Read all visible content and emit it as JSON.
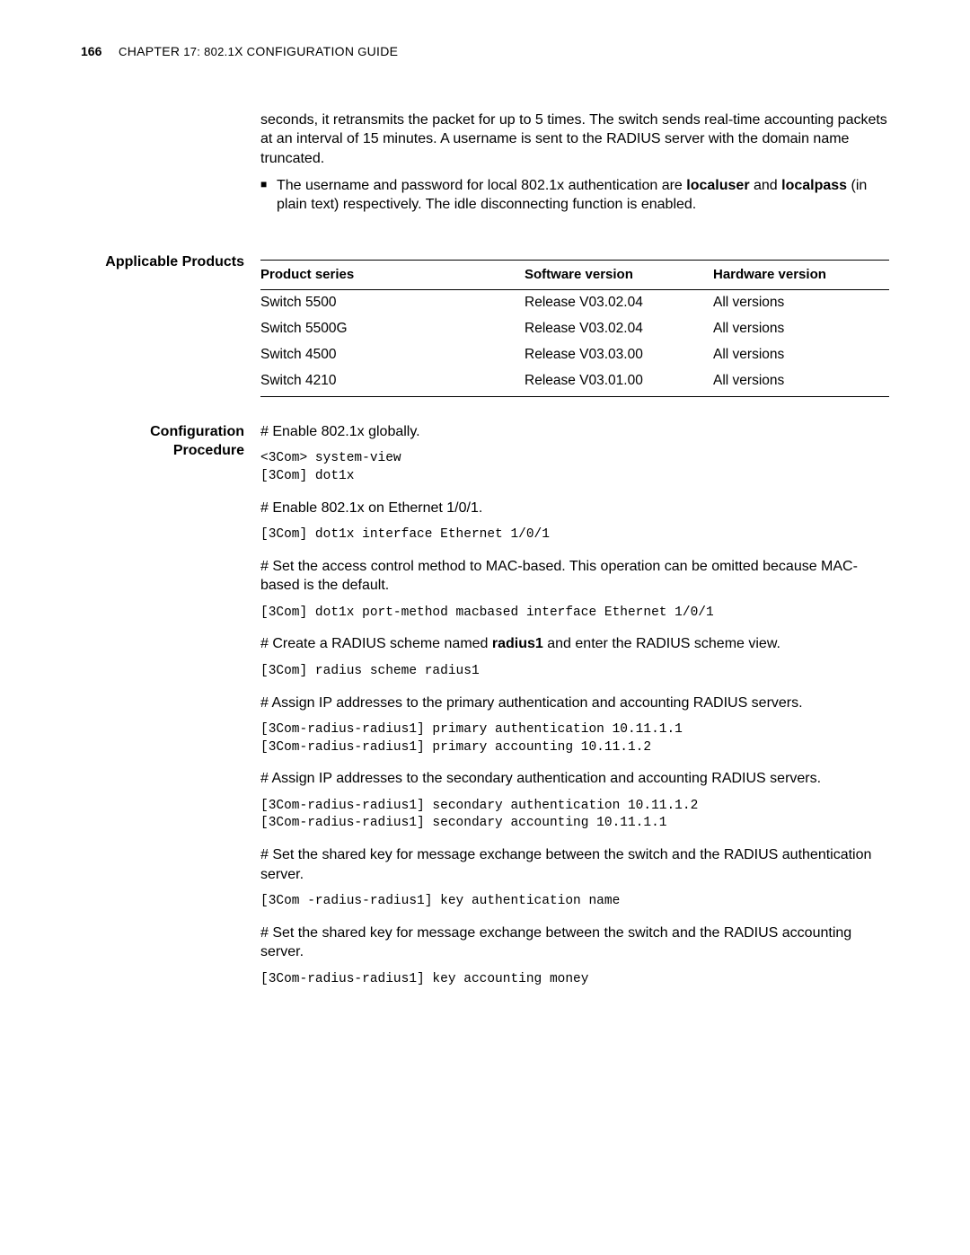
{
  "header": {
    "page_number": "166",
    "chapter_prefix": "C",
    "chapter_text": "HAPTER",
    "chapter_num": " 17: 802.1",
    "chapter_x": "X",
    "chapter_suffix": " C",
    "chapter_tail": "ONFIGURATION",
    "chapter_guide": " G",
    "chapter_guide_tail": "UIDE"
  },
  "intro": {
    "continuation": "seconds, it retransmits the packet for up to 5 times. The switch sends real-time accounting packets at an interval of 15 minutes. A username is sent to the RADIUS server with the domain name truncated.",
    "bullet_start": "The username and password for local 802.1x authentication are ",
    "bullet_bold1": "localuser",
    "bullet_mid": " and ",
    "bullet_bold2": "localpass",
    "bullet_end": " (in plain text) respectively. The idle disconnecting function is enabled."
  },
  "products": {
    "heading": "Applicable Products",
    "columns": [
      "Product series",
      "Software version",
      "Hardware version"
    ],
    "rows": [
      [
        "Switch 5500",
        "Release V03.02.04",
        "All versions"
      ],
      [
        "Switch 5500G",
        "Release V03.02.04",
        "All versions"
      ],
      [
        "Switch 4500",
        "Release V03.03.00",
        "All versions"
      ],
      [
        "Switch 4210",
        "Release V03.01.00",
        "All versions"
      ]
    ]
  },
  "procedure": {
    "heading": "Configuration Procedure",
    "step1_text": "# Enable 802.1x globally.",
    "step1_code": "<3Com> system-view\n[3Com] dot1x",
    "step2_text": "# Enable 802.1x on Ethernet 1/0/1.",
    "step2_code": "[3Com] dot1x interface Ethernet 1/0/1",
    "step3_text": "# Set the access control method to MAC-based. This operation can be omitted because MAC-based is the default.",
    "step3_code": "[3Com] dot1x port-method macbased interface Ethernet 1/0/1",
    "step4_text_pre": "# Create a RADIUS scheme named ",
    "step4_bold": "radius1",
    "step4_text_post": " and enter the RADIUS scheme view.",
    "step4_code": "[3Com] radius scheme radius1",
    "step5_text": "# Assign IP addresses to the primary authentication and accounting RADIUS servers.",
    "step5_code": "[3Com-radius-radius1] primary authentication 10.11.1.1\n[3Com-radius-radius1] primary accounting 10.11.1.2",
    "step6_text": "# Assign IP addresses to the secondary authentication and accounting RADIUS servers.",
    "step6_code": "[3Com-radius-radius1] secondary authentication 10.11.1.2\n[3Com-radius-radius1] secondary accounting 10.11.1.1",
    "step7_text": "# Set the shared key for message exchange between the switch and the RADIUS authentication server.",
    "step7_code": "[3Com -radius-radius1] key authentication name",
    "step8_text": "# Set the shared key for message exchange between the switch and the RADIUS accounting server.",
    "step8_code": "[3Com-radius-radius1] key accounting money"
  }
}
